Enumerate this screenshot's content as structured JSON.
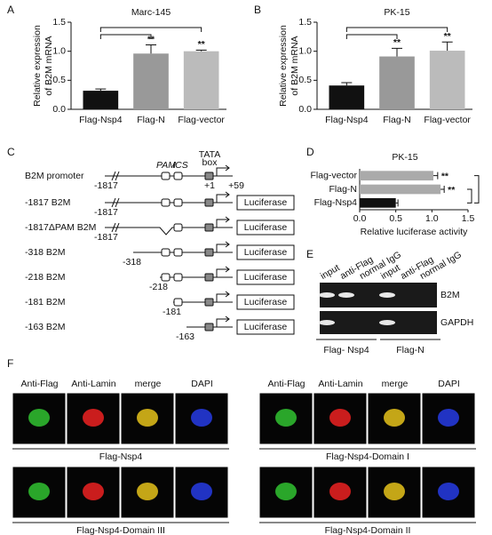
{
  "panel_labels": [
    "A",
    "B",
    "C",
    "D",
    "E",
    "F"
  ],
  "chart_data": [
    {
      "type": "bar",
      "title": "Marc-145",
      "y_label": [
        "Relative expression",
        "of B2M mRNA"
      ],
      "categories": [
        "Flag-Nsp4",
        "Flag-N",
        "Flag-vector"
      ],
      "values": [
        0.32,
        0.96,
        1.0
      ],
      "errors": [
        0.03,
        0.15,
        0.02
      ],
      "colors": [
        "#111111",
        "#999999",
        "#bbbbbb"
      ],
      "significance": [
        null,
        "**",
        "**"
      ],
      "ylim": [
        0,
        1.5
      ],
      "yticks": [
        {
          "value": 0,
          "label": "0.0"
        },
        0.5,
        {
          "value": 1,
          "label": "1.0"
        },
        1.5
      ]
    },
    {
      "type": "bar",
      "title": "PK-15",
      "y_label": [
        "Relative expression",
        "of B2M mRNA"
      ],
      "categories": [
        "Flag-Nsp4",
        "Flag-N",
        "Flag-vector"
      ],
      "values": [
        0.41,
        0.91,
        1.01
      ],
      "errors": [
        0.05,
        0.14,
        0.15
      ],
      "colors": [
        "#111111",
        "#999999",
        "#bbbbbb"
      ],
      "significance": [
        null,
        "**",
        "**"
      ],
      "ylim": [
        0,
        1.5
      ],
      "yticks": [
        {
          "value": 0,
          "label": "0.0"
        },
        0.5,
        {
          "value": 1,
          "label": "1.0"
        },
        1.5
      ]
    },
    {
      "type": "barh",
      "title": "PK-15",
      "x_label": "Relative luciferase activity",
      "categories": [
        "Flag-vector",
        "Flag-N",
        "Flag-Nsp4"
      ],
      "values": [
        1.02,
        1.12,
        0.5
      ],
      "errors": [
        0.06,
        0.05,
        0.03
      ],
      "colors": [
        "#aaaaaa",
        "#aaaaaa",
        "#111111"
      ],
      "significance": [
        "**",
        "**",
        null
      ],
      "xlim": [
        0,
        1.5
      ],
      "xticks": [
        {
          "value": 0,
          "label": "0.0"
        },
        0.5,
        {
          "value": 1,
          "label": "1.0"
        },
        1.5
      ]
    }
  ],
  "promoter": {
    "pam": "PAM",
    "ics": "ICS",
    "tata": [
      "TATA",
      "box"
    ],
    "tss": "+1",
    "end": "+59",
    "reporter": "Luciferase",
    "rows": [
      {
        "label": "B2M promoter",
        "start": "-1817"
      },
      {
        "label": "-1817 B2M",
        "start": "-1817"
      },
      {
        "label": "-1817ΔPAM B2M",
        "start": "-1817"
      },
      {
        "label": "-318 B2M",
        "start": "-318"
      },
      {
        "label": "-218 B2M",
        "start": "-218"
      },
      {
        "label": "-181 B2M",
        "start": "-181"
      },
      {
        "label": "-163 B2M",
        "start": "-163"
      }
    ]
  },
  "gel": {
    "lanes": [
      "input",
      "anti-Flag",
      "normal IgG",
      "input",
      "anti-Flag",
      "normal IgG"
    ],
    "bands": [
      "B2M",
      "GAPDH"
    ],
    "groups": [
      "Flag- Nsp4",
      "Flag-N"
    ]
  },
  "microscopy": {
    "channels": [
      "Anti-Flag",
      "Anti-Lamin",
      "merge",
      "DAPI"
    ],
    "panels": [
      "Flag-Nsp4",
      "Flag-Nsp4-Domain I",
      "Flag-Nsp4-Domain III",
      "Flag-Nsp4-Domain II"
    ]
  }
}
